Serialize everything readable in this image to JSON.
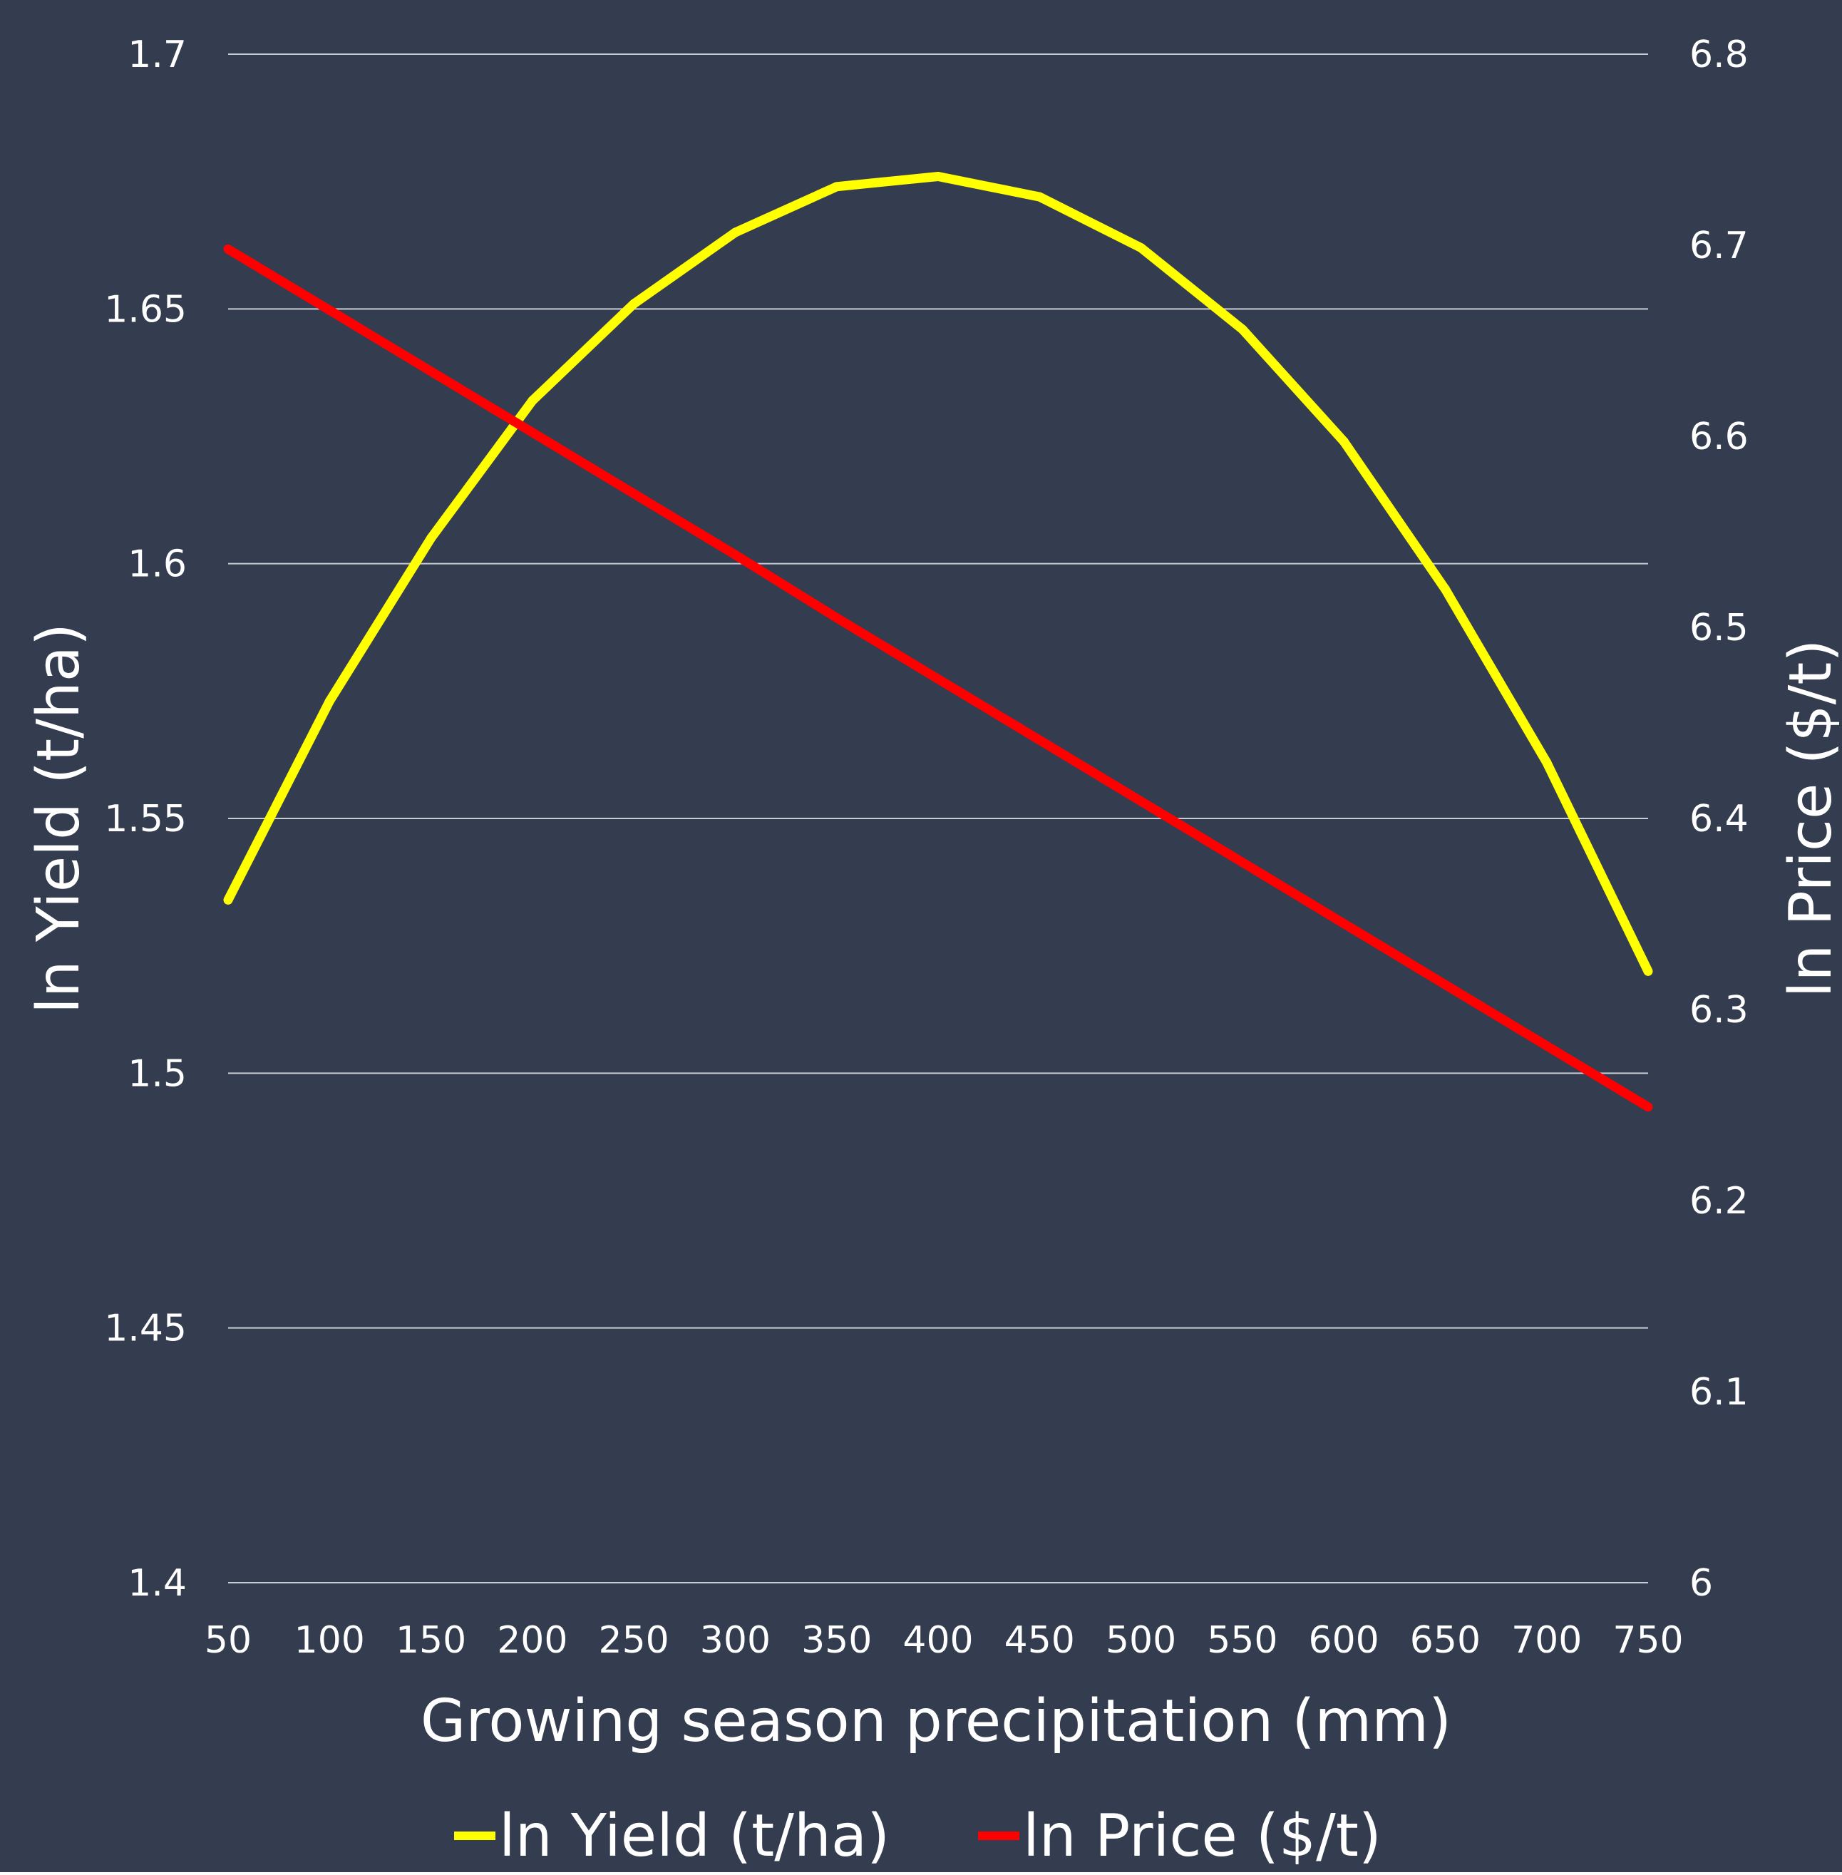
{
  "colors": {
    "background": "#343d4f",
    "grid": "#c8ccd4",
    "text": "#ffffff",
    "yield_line": "#ffff00",
    "price_line": "#ff0000"
  },
  "chart_data": {
    "type": "line",
    "title": "",
    "xlabel": "Growing season precipitation (mm)",
    "ylabel_left": "ln Yield (t/ha)",
    "ylabel_right": "ln Price ($/t)",
    "grid": true,
    "legend_position": "bottom",
    "x": [
      50,
      100,
      150,
      200,
      250,
      300,
      350,
      400,
      450,
      500,
      550,
      600,
      650,
      700,
      750
    ],
    "x_ticks": [
      "50",
      "100",
      "150",
      "200",
      "250",
      "300",
      "350",
      "400",
      "450",
      "500",
      "550",
      "600",
      "650",
      "700",
      "750"
    ],
    "ylim_left": [
      1.4,
      1.7
    ],
    "yticks_left": [
      "1.4",
      "1.45",
      "1.5",
      "1.55",
      "1.6",
      "1.65",
      "1.7"
    ],
    "ylim_right": [
      6.0,
      6.8
    ],
    "yticks_right": [
      "6",
      "6.1",
      "6.2",
      "6.3",
      "6.4",
      "6.5",
      "6.6",
      "6.7",
      "6.8"
    ],
    "series": [
      {
        "name": "ln Yield (t/ha)",
        "axis": "left",
        "color": "#ffff00",
        "values": [
          1.534,
          1.573,
          1.605,
          1.632,
          1.651,
          1.665,
          1.674,
          1.676,
          1.672,
          1.662,
          1.646,
          1.624,
          1.595,
          1.561,
          1.52
        ]
      },
      {
        "name": "ln Price ($/t)",
        "axis": "right",
        "color": "#ff0000",
        "values": [
          6.698,
          6.666,
          6.634,
          6.602,
          6.57,
          6.538,
          6.505,
          6.473,
          6.441,
          6.409,
          6.377,
          6.345,
          6.313,
          6.281,
          6.249
        ]
      }
    ]
  }
}
